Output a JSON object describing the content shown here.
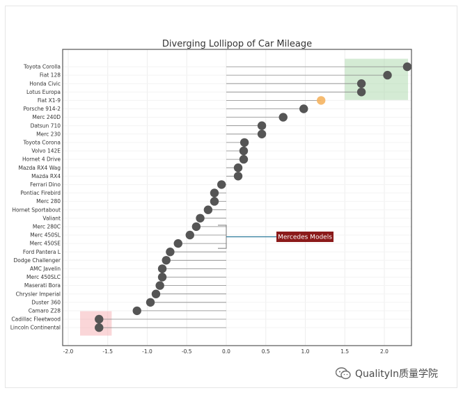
{
  "chart_data": {
    "type": "lollipop",
    "title": "Diverging Lollipop of Car Mileage",
    "xlabel": "",
    "ylabel": "",
    "xlim": [
      -2.2,
      2.35
    ],
    "x_ticks": [
      "-2.0",
      "-1.5",
      "-1.0",
      "-0.5",
      "0.0",
      "0.5",
      "1.0",
      "1.5",
      "2.0"
    ],
    "x_tick_values": [
      -2.0,
      -1.5,
      -1.0,
      -0.5,
      0.0,
      0.5,
      1.0,
      1.5,
      2.0
    ],
    "grid": true,
    "colors": {
      "dot": "#555555",
      "highlight_dot": "#f5b461",
      "stem": "#888888",
      "top_band": "#9fd29f",
      "bottom_band": "#f5a3a8",
      "annotation_bg": "#8b1a1a",
      "annotation_line": "#2c7a9a"
    },
    "categories": [
      "Toyota Corolla",
      "Fiat 128",
      "Honda Civic",
      "Lotus Europa",
      "Fiat X1-9",
      "Porsche 914-2",
      "Merc 240D",
      "Datsun 710",
      "Merc 230",
      "Toyota Corona",
      "Volvo 142E",
      "Hornet 4 Drive",
      "Mazda RX4 Wag",
      "Mazda RX4",
      "Ferrari Dino",
      "Pontiac Firebird",
      "Merc 280",
      "Hornet Sportabout",
      "Valiant",
      "Merc 280C",
      "Merc 450SL",
      "Merc 450SE",
      "Ford Pantera L",
      "Dodge Challenger",
      "AMC Javelin",
      "Merc 450SLC",
      "Maserati Bora",
      "Chrysler Imperial",
      "Duster 360",
      "Camaro Z28",
      "Cadillac Fleetwood",
      "Lincoln Continental"
    ],
    "values": [
      2.29,
      2.04,
      1.71,
      1.71,
      1.2,
      0.98,
      0.72,
      0.45,
      0.45,
      0.23,
      0.22,
      0.22,
      0.15,
      0.15,
      -0.06,
      -0.15,
      -0.15,
      -0.23,
      -0.33,
      -0.38,
      -0.46,
      -0.61,
      -0.71,
      -0.76,
      -0.81,
      -0.81,
      -0.84,
      -0.89,
      -0.96,
      -1.13,
      -1.61,
      -1.61
    ],
    "highlight_index": 4,
    "bands": [
      {
        "x_range": [
          1.5,
          2.3
        ],
        "rows": [
          0,
          3
        ],
        "color": "#9fd29f"
      },
      {
        "x_range": [
          -1.85,
          -1.45
        ],
        "rows": [
          30,
          31
        ],
        "color": "#f5a3a8"
      }
    ],
    "annotation": {
      "text": "Mercedes Models",
      "rows": [
        19,
        21
      ]
    }
  },
  "watermark": {
    "icon": "wechat-icon",
    "text": "QualityIn质量学院"
  }
}
